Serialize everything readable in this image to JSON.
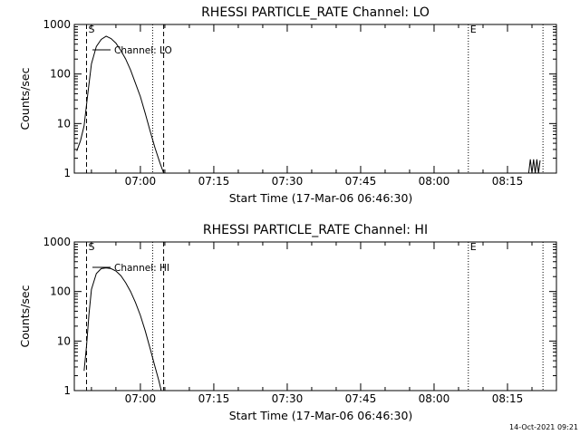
{
  "chart_data": [
    {
      "type": "line",
      "title": "RHESSI PARTICLE_RATE Channel: LO",
      "xlabel": "Start Time (17-Mar-06 06:46:30)",
      "ylabel": "Counts/sec",
      "yscale": "log",
      "ylim": [
        1,
        1000
      ],
      "xlim": [
        "06:46:30",
        "08:25:00"
      ],
      "y_tick_labels": [
        "1",
        "10",
        "100",
        "1000"
      ],
      "y_tick_values": [
        1,
        10,
        100,
        1000
      ],
      "x_tick_labels": [
        "07:00",
        "07:15",
        "07:30",
        "07:45",
        "08:00",
        "08:15"
      ],
      "grid": false,
      "legend": {
        "entry": "Channel: LO",
        "placement": "top-left"
      },
      "markers": [
        {
          "label": "S",
          "time": "06:49:00",
          "style": "dashed"
        },
        {
          "label": "",
          "time": "07:02:30",
          "style": "dotted"
        },
        {
          "label": "",
          "time": "07:04:45",
          "style": "dashed"
        },
        {
          "label": "E",
          "time": "08:07:00",
          "style": "dotted"
        },
        {
          "label": "",
          "time": "08:22:15",
          "style": "dotted"
        }
      ],
      "series": [
        {
          "name": "Channel: LO",
          "x": [
            "06:47:00",
            "06:47:45",
            "06:48:30",
            "06:49:15",
            "06:50:00",
            "06:51:00",
            "06:52:00",
            "06:53:00",
            "06:54:00",
            "06:55:00",
            "06:56:00",
            "06:57:00",
            "06:58:00",
            "06:59:00",
            "07:00:00",
            "07:01:00",
            "07:02:00",
            "07:03:00",
            "07:04:00",
            "07:04:45"
          ],
          "values": [
            2.8,
            4.5,
            9,
            40,
            160,
            360,
            500,
            580,
            520,
            420,
            300,
            200,
            120,
            65,
            35,
            16,
            7,
            3.2,
            1.6,
            1.0
          ]
        },
        {
          "name": "",
          "x": [
            "08:19:20",
            "08:19:40",
            "08:20:00",
            "08:20:20",
            "08:20:40",
            "08:21:00",
            "08:21:20",
            "08:21:40"
          ],
          "values": [
            1.0,
            1.9,
            1.0,
            1.9,
            1.0,
            1.9,
            1.0,
            1.8
          ]
        }
      ]
    },
    {
      "type": "line",
      "title": "RHESSI PARTICLE_RATE Channel: HI",
      "xlabel": "Start Time (17-Mar-06 06:46:30)",
      "ylabel": "Counts/sec",
      "yscale": "log",
      "ylim": [
        1,
        1000
      ],
      "xlim": [
        "06:46:30",
        "08:25:00"
      ],
      "y_tick_labels": [
        "1",
        "10",
        "100",
        "1000"
      ],
      "y_tick_values": [
        1,
        10,
        100,
        1000
      ],
      "x_tick_labels": [
        "07:00",
        "07:15",
        "07:30",
        "07:45",
        "08:00",
        "08:15"
      ],
      "grid": false,
      "legend": {
        "entry": "Channel: HI",
        "placement": "top-left"
      },
      "markers": [
        {
          "label": "S",
          "time": "06:49:00",
          "style": "dashed"
        },
        {
          "label": "",
          "time": "07:02:30",
          "style": "dotted"
        },
        {
          "label": "",
          "time": "07:04:45",
          "style": "dashed"
        },
        {
          "label": "E",
          "time": "08:07:00",
          "style": "dotted"
        },
        {
          "label": "",
          "time": "08:22:15",
          "style": "dotted"
        }
      ],
      "series": [
        {
          "name": "Channel: HI",
          "x": [
            "06:48:30",
            "06:49:00",
            "06:49:30",
            "06:50:00",
            "06:51:00",
            "06:52:00",
            "06:53:00",
            "06:54:00",
            "06:55:00",
            "06:56:00",
            "06:57:00",
            "06:58:00",
            "06:59:00",
            "07:00:00",
            "07:01:00",
            "07:02:00",
            "07:03:00",
            "07:03:45",
            "07:04:15"
          ],
          "values": [
            2.5,
            8,
            35,
            110,
            230,
            290,
            300,
            290,
            260,
            210,
            150,
            100,
            60,
            33,
            16,
            7,
            3,
            1.6,
            1.0
          ]
        }
      ]
    }
  ],
  "footer": {
    "timestamp": "14-Oct-2021 09:21"
  }
}
